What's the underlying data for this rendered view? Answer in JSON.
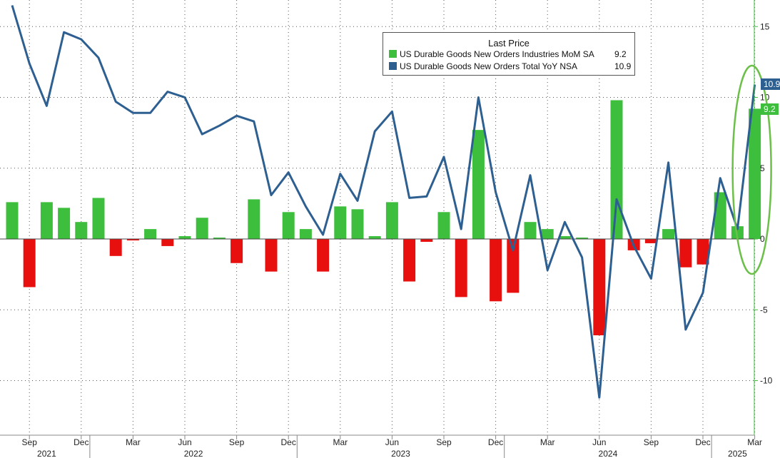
{
  "chart_data": {
    "type": "bar+line",
    "x_month_labels": [
      "Sep",
      "Dec",
      "Mar",
      "Jun",
      "Sep",
      "Dec",
      "Mar",
      "Jun",
      "Sep",
      "Dec",
      "Mar",
      "Jun",
      "Sep",
      "Dec",
      "Mar"
    ],
    "x_year_labels": [
      "2021",
      "2022",
      "2023",
      "2024",
      "2025"
    ],
    "months": [
      "2021-08",
      "2021-09",
      "2021-10",
      "2021-11",
      "2021-12",
      "2022-01",
      "2022-02",
      "2022-03",
      "2022-04",
      "2022-05",
      "2022-06",
      "2022-07",
      "2022-08",
      "2022-09",
      "2022-10",
      "2022-11",
      "2022-12",
      "2023-01",
      "2023-02",
      "2023-03",
      "2023-04",
      "2023-05",
      "2023-06",
      "2023-07",
      "2023-08",
      "2023-09",
      "2023-10",
      "2023-11",
      "2023-12",
      "2024-01",
      "2024-02",
      "2024-03",
      "2024-04",
      "2024-05",
      "2024-06",
      "2024-07",
      "2024-08",
      "2024-09",
      "2024-10",
      "2024-11",
      "2024-12",
      "2025-01",
      "2025-02",
      "2025-03"
    ],
    "y_ticks": [
      15,
      10,
      5,
      0,
      -5,
      -10
    ],
    "ylim": [
      -13.8,
      16.8
    ],
    "grid": true,
    "legend_position": "top-center",
    "legend_title": "Last Price",
    "series": [
      {
        "name": "US Durable Goods New Orders Industries MoM SA",
        "last_value": "9.2",
        "type": "bar",
        "positive_color": "#3dbf3d",
        "negative_color": "#e8100f",
        "values": [
          2.6,
          -3.4,
          2.6,
          2.2,
          1.2,
          2.9,
          -1.2,
          -0.1,
          0.7,
          -0.5,
          0.2,
          1.5,
          0.1,
          -1.7,
          2.8,
          -2.3,
          1.9,
          0.7,
          -2.3,
          2.3,
          2.1,
          0.2,
          2.6,
          -3.0,
          -0.2,
          1.9,
          -4.1,
          7.7,
          -4.4,
          -3.8,
          1.2,
          0.7,
          0.2,
          0.1,
          -6.8,
          9.8,
          -0.8,
          -0.3,
          0.7,
          -2.0,
          -1.8,
          3.3,
          0.9,
          9.2
        ]
      },
      {
        "name": "US Durable Goods New Orders Total YoY NSA",
        "last_value": "10.9",
        "type": "line",
        "color": "#2e5f91",
        "values": [
          16.5,
          12.4,
          9.4,
          14.6,
          14.1,
          12.8,
          9.7,
          8.9,
          8.9,
          10.4,
          10.0,
          7.4,
          8.0,
          8.7,
          8.3,
          3.1,
          4.7,
          2.3,
          0.3,
          4.6,
          2.7,
          7.6,
          9.0,
          2.9,
          3.0,
          5.8,
          0.7,
          10.0,
          3.3,
          -0.8,
          4.5,
          -2.2,
          1.2,
          -1.3,
          -11.2,
          2.8,
          -0.5,
          -2.8,
          5.4,
          -6.4,
          -3.8,
          4.3,
          0.7,
          10.9
        ]
      }
    ],
    "highlight": "ellipse around last bar and line point (Mar 2025)"
  },
  "badges": {
    "line_value": "10.9",
    "bar_value": "9.2"
  }
}
